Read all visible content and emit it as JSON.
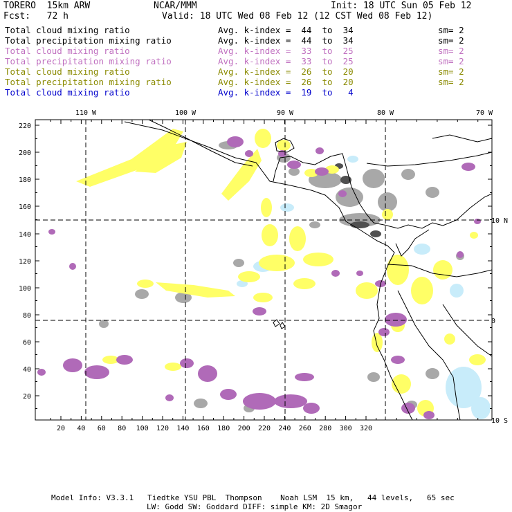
{
  "header": {
    "model": "TORERO  15km ARW",
    "org": "NCAR/MMM",
    "init": "Init: 18 UTC Sun 05 Feb 12",
    "fcst": "Fcst:   72 h",
    "valid": "Valid: 18 UTC Wed 08 Feb 12 (12 CST Wed 08 Feb 12)"
  },
  "legend": [
    {
      "name": "Total cloud mixing ratio",
      "kindex": "Avg. k-index =  44  to  34",
      "sm": "sm= 2",
      "color": "#000000"
    },
    {
      "name": "Total precipitation mixing ratio",
      "kindex": "Avg. k-index =  44  to  34",
      "sm": "sm= 2",
      "color": "#000000"
    },
    {
      "name": "Total cloud mixing ratio",
      "kindex": "Avg. k-index =  33  to  25",
      "sm": "sm= 2",
      "color": "#c070c0"
    },
    {
      "name": "Total precipitation mixing ratio",
      "kindex": "Avg. k-index =  33  to  25",
      "sm": "sm= 2",
      "color": "#c070c0"
    },
    {
      "name": "Total cloud mixing ratio",
      "kindex": "Avg. k-index =  26  to  20",
      "sm": "sm= 2",
      "color": "#8a8a00"
    },
    {
      "name": "Total precipitation mixing ratio",
      "kindex": "Avg. k-index =  26  to  20",
      "sm": "sm= 2",
      "color": "#8a8a00"
    },
    {
      "name": "Total cloud mixing ratio",
      "kindex": "Avg. k-index =  19  to   4",
      "sm": "",
      "color": "#0000cc"
    }
  ],
  "map": {
    "top_lon_labels": [
      "110 W",
      "100 W",
      "90 W",
      "80 W",
      "70 W"
    ],
    "right_lat_labels": [
      "10 N",
      "0",
      "10 S"
    ],
    "left_ticks": [
      "220",
      "200",
      "180",
      "160",
      "140",
      "120",
      "100",
      "80",
      "60",
      "40",
      "20"
    ],
    "bottom_ticks": [
      "20",
      "40",
      "60",
      "80",
      "100",
      "120",
      "140",
      "160",
      "180",
      "200",
      "220",
      "240",
      "260",
      "280",
      "300",
      "320"
    ],
    "colors": {
      "gray": "#a8a8a8",
      "dark": "#505050",
      "purple": "#b06ab8",
      "yellow": "#ffff66",
      "lightblue": "#c8ecfa",
      "coast": "#000000"
    }
  },
  "footer": {
    "line1": "Model Info: V3.3.1   Tiedtke YSU PBL  Thompson    Noah LSM  15 km,   44 levels,   65 sec",
    "line2": "LW: Godd SW: Goddard DIFF: simple KM: 2D Smagor"
  }
}
